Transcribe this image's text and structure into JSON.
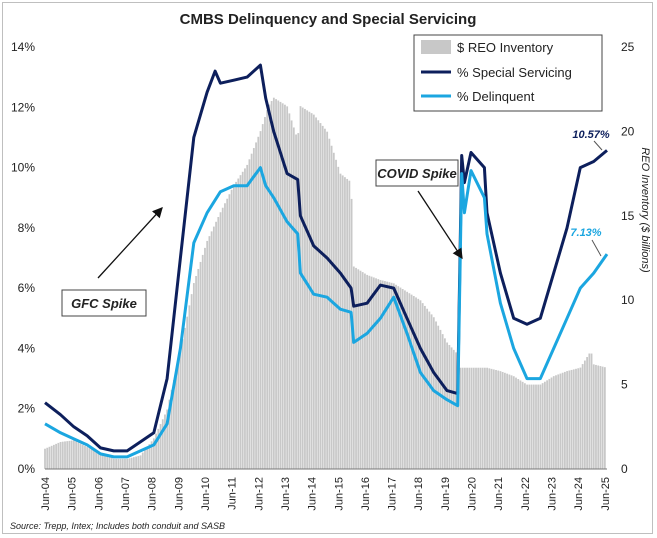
{
  "chart_data": {
    "type": "bar+line",
    "title": "CMBS Delinquency and Special Servicing",
    "y_left": {
      "min": 0,
      "max": 14,
      "unit": "%",
      "ticks": [
        "0%",
        "2%",
        "4%",
        "6%",
        "8%",
        "10%",
        "12%",
        "14%"
      ]
    },
    "y_right": {
      "label": "REO Inventory ($ billions)",
      "min": 0,
      "max": 25,
      "ticks": [
        "0",
        "5",
        "10",
        "15",
        "20",
        "25"
      ]
    },
    "x_ticks": [
      "Jun-04",
      "Jun-05",
      "Jun-06",
      "Jun-07",
      "Jun-08",
      "Jun-09",
      "Jun-10",
      "Jun-11",
      "Jun-12",
      "Jun-13",
      "Jun-14",
      "Jun-15",
      "Jun-16",
      "Jun-17",
      "Jun-18",
      "Jun-19",
      "Jun-20",
      "Jun-21",
      "Jun-22",
      "Jun-23",
      "Jun-24",
      "Jun-25"
    ],
    "x_range": [
      2004.42,
      2025.5
    ],
    "legend_position": "top-right",
    "series": [
      {
        "name": "$ REO Inventory",
        "kind": "bar",
        "axis": "right",
        "color": "#c8c8c8",
        "points": [
          [
            2004.42,
            1.2
          ],
          [
            2005.0,
            1.6
          ],
          [
            2005.5,
            1.7
          ],
          [
            2006.0,
            1.3
          ],
          [
            2006.5,
            0.9
          ],
          [
            2007.0,
            0.6
          ],
          [
            2007.5,
            0.6
          ],
          [
            2008.0,
            0.8
          ],
          [
            2008.5,
            1.8
          ],
          [
            2009.0,
            3.5
          ],
          [
            2009.5,
            7.0
          ],
          [
            2010.0,
            11.0
          ],
          [
            2010.5,
            13.5
          ],
          [
            2011.0,
            15.2
          ],
          [
            2011.5,
            16.8
          ],
          [
            2012.0,
            18.0
          ],
          [
            2012.5,
            20.0
          ],
          [
            2012.8,
            21.5
          ],
          [
            2013.0,
            22.0
          ],
          [
            2013.5,
            21.5
          ],
          [
            2013.9,
            19.5
          ],
          [
            2014.0,
            21.5
          ],
          [
            2014.5,
            21.0
          ],
          [
            2015.0,
            20.0
          ],
          [
            2015.5,
            17.5
          ],
          [
            2015.9,
            17.0
          ],
          [
            2016.0,
            12.0
          ],
          [
            2016.5,
            11.5
          ],
          [
            2017.0,
            11.2
          ],
          [
            2017.5,
            11.0
          ],
          [
            2018.0,
            10.5
          ],
          [
            2018.5,
            10.0
          ],
          [
            2019.0,
            9.0
          ],
          [
            2019.5,
            7.5
          ],
          [
            2019.9,
            6.8
          ],
          [
            2020.0,
            6.0
          ],
          [
            2020.5,
            6.0
          ],
          [
            2021.0,
            6.0
          ],
          [
            2021.5,
            5.8
          ],
          [
            2022.0,
            5.5
          ],
          [
            2022.5,
            5.0
          ],
          [
            2023.0,
            5.0
          ],
          [
            2023.5,
            5.5
          ],
          [
            2024.0,
            5.8
          ],
          [
            2024.5,
            6.0
          ],
          [
            2024.9,
            7.0
          ],
          [
            2025.0,
            6.2
          ],
          [
            2025.5,
            6.0
          ]
        ]
      },
      {
        "name": "% Special Servicing",
        "kind": "line",
        "axis": "left",
        "color": "#0d1f5c",
        "points": [
          [
            2004.42,
            2.2
          ],
          [
            2005.0,
            1.8
          ],
          [
            2005.5,
            1.4
          ],
          [
            2006.0,
            1.1
          ],
          [
            2006.5,
            0.7
          ],
          [
            2007.0,
            0.6
          ],
          [
            2007.5,
            0.6
          ],
          [
            2008.0,
            0.9
          ],
          [
            2008.5,
            1.2
          ],
          [
            2009.0,
            3.0
          ],
          [
            2009.5,
            7.0
          ],
          [
            2010.0,
            11.0
          ],
          [
            2010.5,
            12.5
          ],
          [
            2010.8,
            13.2
          ],
          [
            2011.0,
            12.8
          ],
          [
            2011.5,
            12.9
          ],
          [
            2012.0,
            13.0
          ],
          [
            2012.5,
            13.4
          ],
          [
            2012.7,
            12.3
          ],
          [
            2013.0,
            11.2
          ],
          [
            2013.5,
            9.8
          ],
          [
            2013.9,
            9.6
          ],
          [
            2014.0,
            8.4
          ],
          [
            2014.5,
            7.4
          ],
          [
            2015.0,
            7.0
          ],
          [
            2015.5,
            6.5
          ],
          [
            2015.9,
            6.0
          ],
          [
            2016.0,
            5.4
          ],
          [
            2016.5,
            5.5
          ],
          [
            2017.0,
            6.1
          ],
          [
            2017.5,
            6.0
          ],
          [
            2018.0,
            5.0
          ],
          [
            2018.5,
            4.0
          ],
          [
            2019.0,
            3.2
          ],
          [
            2019.5,
            2.6
          ],
          [
            2019.9,
            2.5
          ],
          [
            2020.05,
            10.4
          ],
          [
            2020.15,
            9.5
          ],
          [
            2020.4,
            10.5
          ],
          [
            2020.9,
            10.0
          ],
          [
            2021.0,
            8.5
          ],
          [
            2021.5,
            6.5
          ],
          [
            2022.0,
            5.0
          ],
          [
            2022.5,
            4.8
          ],
          [
            2023.0,
            5.0
          ],
          [
            2023.5,
            6.5
          ],
          [
            2024.0,
            8.0
          ],
          [
            2024.5,
            10.0
          ],
          [
            2025.0,
            10.2
          ],
          [
            2025.5,
            10.57
          ]
        ]
      },
      {
        "name": "% Delinquent",
        "kind": "line",
        "axis": "left",
        "color": "#1ba6e0",
        "points": [
          [
            2004.42,
            1.5
          ],
          [
            2005.0,
            1.2
          ],
          [
            2005.5,
            1.0
          ],
          [
            2006.0,
            0.8
          ],
          [
            2006.5,
            0.5
          ],
          [
            2007.0,
            0.4
          ],
          [
            2007.5,
            0.4
          ],
          [
            2008.0,
            0.6
          ],
          [
            2008.5,
            0.8
          ],
          [
            2009.0,
            1.5
          ],
          [
            2009.5,
            4.0
          ],
          [
            2010.0,
            7.5
          ],
          [
            2010.5,
            8.5
          ],
          [
            2011.0,
            9.2
          ],
          [
            2011.5,
            9.4
          ],
          [
            2012.0,
            9.4
          ],
          [
            2012.5,
            10.0
          ],
          [
            2012.7,
            9.4
          ],
          [
            2013.0,
            9.0
          ],
          [
            2013.5,
            8.2
          ],
          [
            2013.9,
            7.8
          ],
          [
            2014.0,
            6.5
          ],
          [
            2014.5,
            5.8
          ],
          [
            2015.0,
            5.7
          ],
          [
            2015.5,
            5.3
          ],
          [
            2015.9,
            5.2
          ],
          [
            2016.0,
            4.2
          ],
          [
            2016.5,
            4.5
          ],
          [
            2017.0,
            5.0
          ],
          [
            2017.5,
            5.7
          ],
          [
            2018.0,
            4.5
          ],
          [
            2018.5,
            3.2
          ],
          [
            2019.0,
            2.6
          ],
          [
            2019.5,
            2.3
          ],
          [
            2019.9,
            2.1
          ],
          [
            2020.05,
            9.8
          ],
          [
            2020.15,
            8.5
          ],
          [
            2020.4,
            9.9
          ],
          [
            2020.9,
            9.0
          ],
          [
            2021.0,
            7.8
          ],
          [
            2021.5,
            5.5
          ],
          [
            2022.0,
            4.0
          ],
          [
            2022.5,
            3.0
          ],
          [
            2023.0,
            3.0
          ],
          [
            2023.5,
            4.0
          ],
          [
            2024.0,
            5.0
          ],
          [
            2024.5,
            6.0
          ],
          [
            2025.0,
            6.5
          ],
          [
            2025.5,
            7.13
          ]
        ]
      }
    ],
    "annotations": {
      "gfc": "GFC Spike",
      "covid": "COVID Spike",
      "ss_last": "10.57%",
      "dq_last": "7.13%"
    },
    "source": "Source: Trepp, Intex; Includes both conduit and SASB"
  },
  "colors": {
    "reo": "#c8c8c8",
    "special_servicing": "#0d1f5c",
    "delinquent": "#1ba6e0",
    "axis_text": "#222222"
  }
}
